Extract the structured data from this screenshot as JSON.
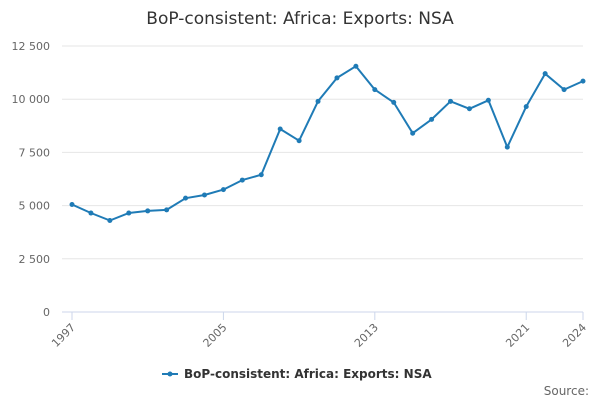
{
  "chart_data": {
    "type": "line",
    "title": "BoP-consistent: Africa: Exports: NSA",
    "xlabel": "",
    "ylabel": "",
    "x": [
      1997,
      1998,
      1999,
      2000,
      2001,
      2002,
      2003,
      2004,
      2005,
      2006,
      2007,
      2008,
      2009,
      2010,
      2011,
      2012,
      2013,
      2014,
      2015,
      2016,
      2017,
      2018,
      2019,
      2020,
      2021,
      2022,
      2023,
      2024
    ],
    "series": [
      {
        "name": "BoP-consistent: Africa: Exports: NSA",
        "color": "#1f7bb6",
        "values": [
          5050,
          4650,
          4300,
          4650,
          4750,
          4800,
          5350,
          5500,
          5750,
          6200,
          6450,
          8600,
          8050,
          9900,
          11000,
          11550,
          10450,
          9850,
          8400,
          9050,
          9900,
          9550,
          9950,
          7750,
          9650,
          11200,
          10450,
          10850
        ]
      }
    ],
    "xticks": [
      1997,
      2005,
      2013,
      2021,
      2024
    ],
    "xtick_labels": [
      "1997",
      "2005",
      "2013",
      "2021",
      "2024"
    ],
    "yticks": [
      0,
      2500,
      5000,
      7500,
      10000,
      12500
    ],
    "ytick_labels": [
      "0",
      "2 500",
      "5 000",
      "7 500",
      "10 000",
      "12 500"
    ],
    "xlim": [
      1997,
      2024
    ],
    "ylim": [
      0,
      12500
    ],
    "grid": true,
    "legend_position": "bottom-center"
  },
  "source_label": "Source:"
}
